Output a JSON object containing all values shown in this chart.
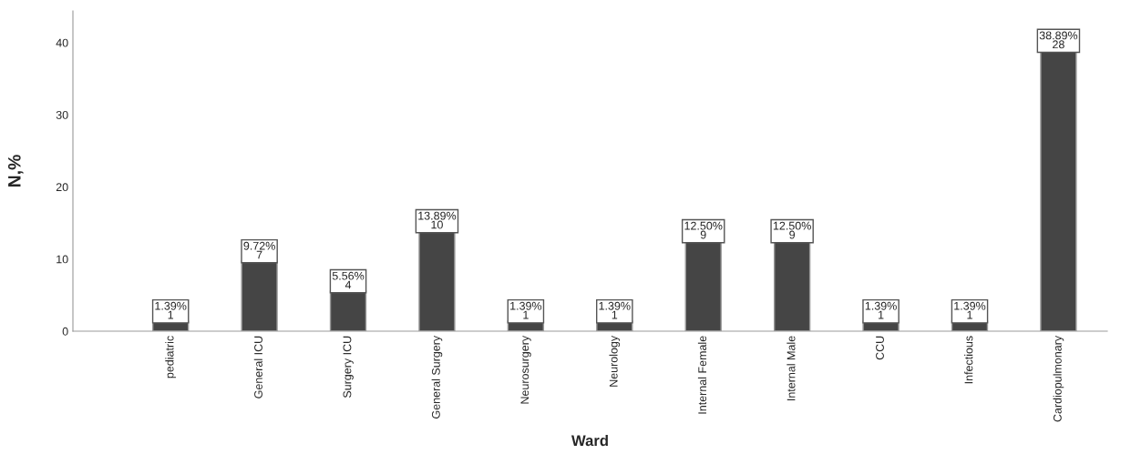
{
  "chart_data": {
    "type": "bar",
    "xlabel": "Ward",
    "ylabel": "N,%",
    "categories": [
      "pediatric",
      "General ICU",
      "Surgery ICU",
      "General Surgery",
      "Neurosurgery",
      "Neurology",
      "Internal Female",
      "Internal Male",
      "CCU",
      "Infectious",
      "Cardiopulmonary"
    ],
    "values": [
      1.39,
      9.72,
      5.56,
      13.89,
      1.39,
      1.39,
      12.5,
      12.5,
      1.39,
      1.39,
      38.89
    ],
    "value_labels": [
      "1.39%\n1",
      "9.72%\n7",
      "5.56%\n4",
      "13.89%\n10",
      "1.39%\n1",
      "1.39%\n1",
      "12.50%\n9",
      "12.50%\n9",
      "1.39%\n1",
      "1.39%\n1",
      "38.89%\n28"
    ],
    "color": "#454545",
    "ylim": [
      0,
      44.4
    ],
    "yticks": [
      0,
      10,
      20,
      30,
      40
    ],
    "grid": false,
    "legend": false
  }
}
